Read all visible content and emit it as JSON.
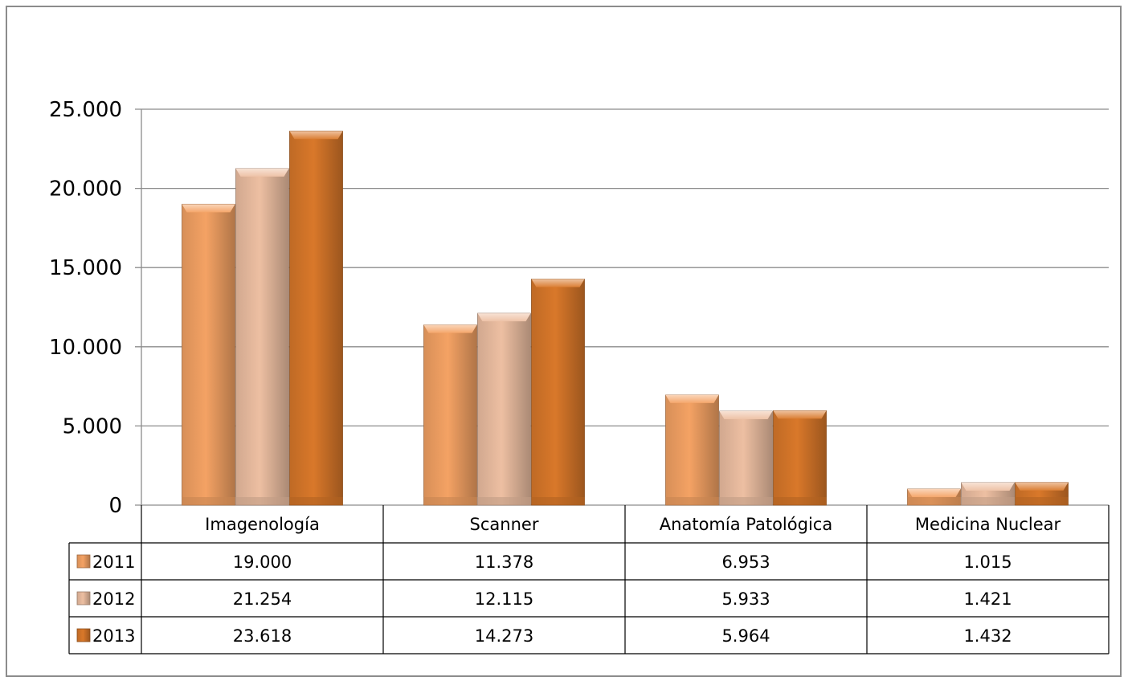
{
  "chart_data": {
    "type": "bar",
    "categories": [
      "Imagenología",
      "Scanner",
      "Anatomía Patológica",
      "Medicina Nuclear"
    ],
    "series": [
      {
        "name": "2011",
        "values": [
          19000,
          11378,
          6953,
          1015
        ],
        "labels": [
          "19.000",
          "11.378",
          "6.953",
          "1.015"
        ],
        "color": "#F4A264"
      },
      {
        "name": "2012",
        "values": [
          21254,
          12115,
          5933,
          1421
        ],
        "labels": [
          "21.254",
          "12.115",
          "5.933",
          "1.421"
        ],
        "color": "#EDBFA2"
      },
      {
        "name": "2013",
        "values": [
          23618,
          14273,
          5964,
          1432
        ],
        "labels": [
          "23.618",
          "14.273",
          "5.964",
          "1.432"
        ],
        "color": "#D9782A"
      }
    ],
    "ylim": [
      0,
      25000
    ],
    "y_ticks": [
      0,
      5000,
      10000,
      15000,
      20000,
      25000
    ],
    "y_tick_labels": [
      "0",
      "5.000",
      "10.000",
      "15.000",
      "20.000",
      "25.000"
    ],
    "grid": true,
    "legend": "data-table-left"
  }
}
